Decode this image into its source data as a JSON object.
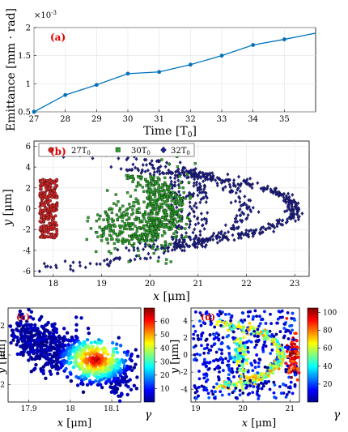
{
  "figure": {
    "panel_a": {
      "label": "(a)",
      "exponent": "×10",
      "exponent_power": "-3",
      "ylabel": "Emittance [mm · rad]",
      "xlabel": "Time [T",
      "xlabel_sub": "0",
      "xlabel_end": "]"
    },
    "panel_b": {
      "label": "(b)",
      "ylabel_var": "y",
      "ylabel_unit": "[μm]",
      "xlabel_var": "x",
      "xlabel_unit": "[μm]",
      "legend": [
        {
          "text": "27T",
          "sub": "0"
        },
        {
          "text": "30T",
          "sub": "0"
        },
        {
          "text": "32T",
          "sub": "0"
        }
      ]
    },
    "panel_c": {
      "label": "(c)",
      "ylabel_var": "y",
      "ylabel_unit": "[μm]",
      "xlabel_var": "x",
      "xlabel_unit": "[μm]",
      "colorbar_label": "γ"
    },
    "panel_d": {
      "label": "(d)",
      "ylabel_var": "y",
      "ylabel_unit": "[μm]",
      "xlabel_var": "x",
      "xlabel_unit": "[μm]",
      "colorbar_label": "γ"
    }
  },
  "chart_data": [
    {
      "type": "line",
      "panel": "a",
      "x": [
        27,
        28,
        29,
        30,
        31,
        32,
        33,
        34,
        35,
        36
      ],
      "y": [
        0.5,
        0.8,
        0.98,
        1.18,
        1.21,
        1.34,
        1.5,
        1.69,
        1.79,
        1.9
      ],
      "marker_x": [
        27,
        28,
        29,
        30,
        31,
        32,
        33,
        34,
        35
      ],
      "y_scale_note": "×10^-3",
      "xlim": [
        27,
        36
      ],
      "ylim": [
        0.5,
        2
      ],
      "xticks": [
        "27",
        "28",
        "29",
        "30",
        "31",
        "32",
        "33",
        "34",
        "35"
      ],
      "yticks": [
        "0.5",
        "1",
        "1.5",
        "2"
      ],
      "grid": true,
      "color": "#0072BD"
    },
    {
      "type": "scatter",
      "panel": "b",
      "xlim": [
        17.6,
        23.3
      ],
      "ylim": [
        -6.5,
        6.5
      ],
      "xticks": [
        "18",
        "19",
        "20",
        "21",
        "22",
        "23"
      ],
      "yticks": [
        "-6",
        "-4",
        "-2",
        "0",
        "2",
        "4",
        "6"
      ],
      "grid": true,
      "legend_position": "top-left",
      "series": [
        {
          "name": "27T0",
          "marker": "circle",
          "color": "#d62728",
          "shape": {
            "cx": 17.9,
            "cy": 0,
            "w": 0.18,
            "h": 2.8,
            "count": 260
          }
        },
        {
          "name": "30T0",
          "marker": "square",
          "color": "#2ca02c",
          "shape": {
            "core_x": 20.7,
            "core_half_h": 3.2,
            "tail_to_x": 18.9,
            "count": 650
          }
        },
        {
          "name": "32T0",
          "marker": "diamond",
          "color": "#1f1f8f",
          "shape": {
            "front_x": 23.0,
            "ring_r": 3.2,
            "rear_x": 20.8,
            "count": 800
          }
        }
      ]
    },
    {
      "type": "scatter",
      "panel": "c",
      "xlim": [
        17.85,
        18.17
      ],
      "ylim": [
        -3.2,
        3.2
      ],
      "xticks": [
        "17.9",
        "18",
        "18.1"
      ],
      "yticks": [
        "-2",
        "0",
        "2"
      ],
      "colorbar": {
        "min": 0,
        "max": 70,
        "ticks": [
          "10",
          "20",
          "30",
          "40",
          "50",
          "60"
        ]
      }
    },
    {
      "type": "scatter",
      "panel": "d",
      "xlim": [
        18.9,
        21.2
      ],
      "ylim": [
        -5.5,
        5.5
      ],
      "xticks": [
        "19",
        "20",
        "21"
      ],
      "yticks": [
        "-4",
        "-2",
        "0",
        "2",
        "4"
      ],
      "colorbar": {
        "min": 0,
        "max": 105,
        "ticks": [
          "20",
          "40",
          "60",
          "80",
          "100"
        ]
      }
    }
  ]
}
